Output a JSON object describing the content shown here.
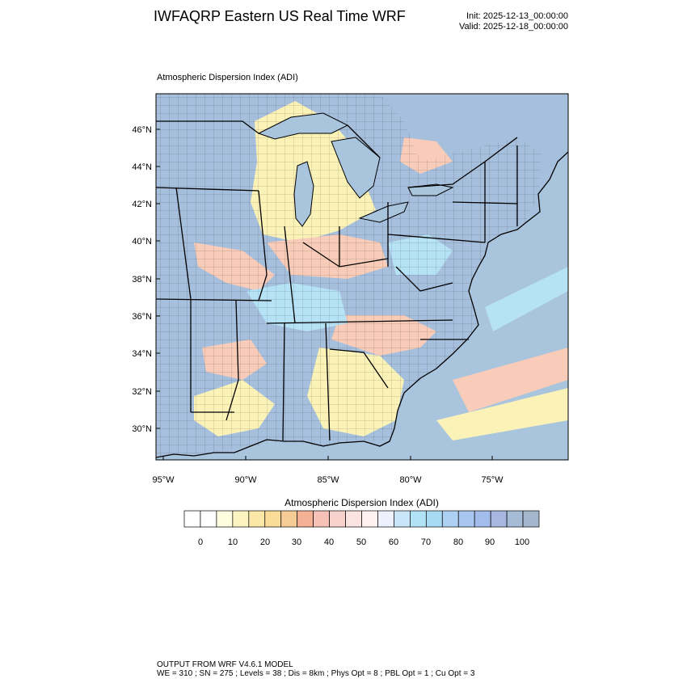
{
  "header": {
    "title": "IWFAQRP Eastern US Real Time WRF",
    "init": "Init: 2025-12-13_00:00:00",
    "valid": "Valid: 2025-12-18_00:00:00"
  },
  "map": {
    "field_label": "Atmospheric Dispersion Index   (ADI)",
    "lat_labels": [
      "46°N",
      "44°N",
      "42°N",
      "40°N",
      "38°N",
      "36°N",
      "34°N",
      "32°N",
      "30°N"
    ],
    "lon_labels": [
      "95°W",
      "90°W",
      "85°W",
      "80°W",
      "75°W"
    ],
    "colors": {
      "ocean": "#a9c4dd",
      "high_adi": "#a6bfdc",
      "low_adi": "#fbf2b8",
      "mid_adi": "#f8ccb8",
      "light_blue": "#b5e3f5",
      "border": "#000000"
    }
  },
  "colorbar": {
    "title": "Atmospheric Dispersion Index  (ADI)",
    "ticks": [
      "0",
      "10",
      "20",
      "30",
      "40",
      "50",
      "60",
      "70",
      "80",
      "90",
      "100"
    ],
    "colors": [
      "#ffffff",
      "#fffde0",
      "#fdf3c0",
      "#fbe8a8",
      "#f9dc98",
      "#f6cc96",
      "#f4b196",
      "#f6c2b8",
      "#f8d2cc",
      "#fae3e0",
      "#fdf2f0",
      "#eef0fb",
      "#c8e6f8",
      "#b2e2f6",
      "#a8daf4",
      "#aed0f2",
      "#a8c6f0",
      "#a2bcec",
      "#a6b8e0",
      "#a6bcd6"
    ]
  },
  "footer": {
    "line1": "OUTPUT FROM WRF V4.6.1 MODEL",
    "line2": "WE = 310 ; SN = 275 ; Levels = 38 ; Dis = 8km ; Phys Opt = 8 ; PBL Opt = 1 ; Cu Opt = 3"
  }
}
